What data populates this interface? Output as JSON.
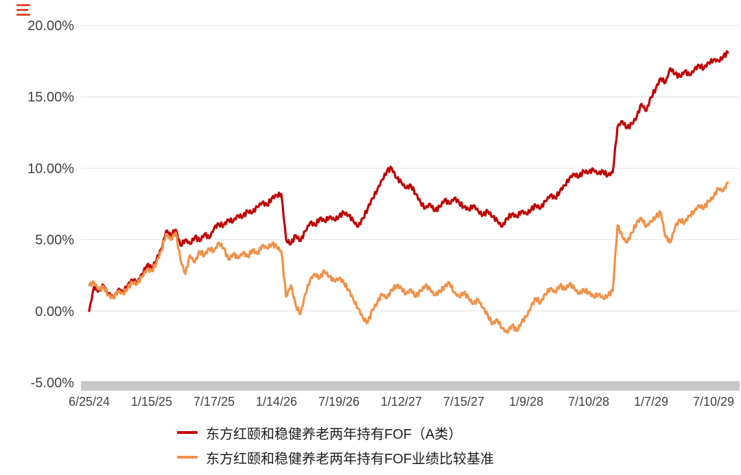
{
  "brand": {
    "mark_color": "#e4472f"
  },
  "chart_data": {
    "type": "line",
    "title": "",
    "xlabel": "",
    "ylabel": "",
    "ylim": [
      -5,
      20
    ],
    "grid": "horizontal",
    "legend_position": "bottom",
    "axis_text_color": "#3f3f3f",
    "gridline_color": "#e2e2e2",
    "baseline_bar_color": "#c8c8c8",
    "y_ticks": [
      {
        "label": "20.00%",
        "value": 20
      },
      {
        "label": "15.00%",
        "value": 15
      },
      {
        "label": "10.00%",
        "value": 10
      },
      {
        "label": "5.00%",
        "value": 5
      },
      {
        "label": "0.00%",
        "value": 0
      },
      {
        "label": "-5.00%",
        "value": -5
      }
    ],
    "x_tick_labels": [
      "6/25/24",
      "1/15/25",
      "7/17/25",
      "1/14/26",
      "7/19/26",
      "1/12/27",
      "7/15/27",
      "1/9/28",
      "7/10/28",
      "1/7/29",
      "7/10/29"
    ],
    "x_tick_indices": [
      0,
      13,
      26,
      39,
      52,
      65,
      78,
      91,
      104,
      117,
      130
    ],
    "series": [
      {
        "name": "东方红颐和稳健养老两年持有FOF（A类）",
        "color": "#c00000",
        "values": [
          0.0,
          1.7,
          1.4,
          1.8,
          1.2,
          0.9,
          1.5,
          1.3,
          1.8,
          2.2,
          2.0,
          2.6,
          3.2,
          3.0,
          3.6,
          4.3,
          5.6,
          5.3,
          5.7,
          4.6,
          5.0,
          4.7,
          5.2,
          4.9,
          5.4,
          5.1,
          5.8,
          6.1,
          6.0,
          6.4,
          6.3,
          6.7,
          6.6,
          7.0,
          6.9,
          7.3,
          7.6,
          7.4,
          7.9,
          8.1,
          8.2,
          5.0,
          4.7,
          5.3,
          4.9,
          5.6,
          6.2,
          6.0,
          6.5,
          6.3,
          6.6,
          6.4,
          6.6,
          6.9,
          6.7,
          6.3,
          5.9,
          6.5,
          7.2,
          7.9,
          8.5,
          9.2,
          9.8,
          10.0,
          9.3,
          9.0,
          8.6,
          8.8,
          8.2,
          7.6,
          7.2,
          7.5,
          7.0,
          7.3,
          7.8,
          7.5,
          7.9,
          7.6,
          7.3,
          7.1,
          7.4,
          7.0,
          6.7,
          7.0,
          6.6,
          6.3,
          5.9,
          6.5,
          6.8,
          6.6,
          7.0,
          6.8,
          7.1,
          7.4,
          7.2,
          7.7,
          8.1,
          7.9,
          8.4,
          8.8,
          9.3,
          9.6,
          9.4,
          9.8,
          9.7,
          9.9,
          9.6,
          9.8,
          9.5,
          9.7,
          12.9,
          13.3,
          12.8,
          13.1,
          13.6,
          14.5,
          14.0,
          15.0,
          15.6,
          16.3,
          16.0,
          17.0,
          16.6,
          16.4,
          16.8,
          16.5,
          16.9,
          17.2,
          17.0,
          17.4,
          17.6,
          17.5,
          17.8,
          18.1
        ]
      },
      {
        "name": "东方红颐和稳健养老两年持有FOF业绩比较基准",
        "color": "#f09148",
        "values": [
          1.8,
          2.0,
          1.5,
          1.7,
          1.1,
          0.9,
          1.4,
          1.2,
          1.6,
          2.0,
          1.9,
          2.4,
          2.9,
          2.8,
          3.4,
          4.2,
          5.4,
          5.0,
          5.5,
          3.6,
          2.6,
          3.9,
          3.4,
          4.2,
          3.9,
          4.4,
          4.2,
          4.8,
          4.4,
          3.6,
          4.0,
          3.7,
          4.1,
          3.8,
          4.3,
          4.0,
          4.6,
          4.4,
          4.7,
          4.5,
          4.2,
          1.0,
          1.8,
          0.4,
          -0.2,
          1.2,
          2.2,
          2.6,
          2.3,
          2.8,
          2.4,
          2.1,
          2.3,
          2.0,
          1.5,
          0.8,
          0.2,
          -0.5,
          -0.8,
          0.1,
          0.6,
          1.2,
          0.9,
          1.5,
          1.8,
          1.6,
          1.2,
          1.5,
          1.0,
          1.4,
          1.8,
          1.5,
          1.1,
          1.4,
          1.7,
          2.0,
          1.3,
          1.0,
          1.3,
          0.9,
          0.5,
          0.8,
          0.2,
          -0.3,
          -0.9,
          -0.6,
          -1.2,
          -1.5,
          -1.0,
          -1.4,
          -0.8,
          -0.4,
          0.3,
          0.9,
          0.6,
          1.2,
          1.6,
          1.3,
          1.8,
          1.5,
          1.9,
          1.6,
          1.2,
          1.5,
          1.3,
          1.0,
          1.2,
          0.9,
          1.1,
          1.4,
          6.0,
          5.2,
          4.8,
          5.5,
          6.2,
          6.5,
          5.9,
          6.3,
          6.6,
          6.9,
          5.2,
          4.8,
          5.9,
          6.4,
          6.2,
          6.7,
          7.0,
          7.4,
          7.2,
          7.7,
          8.0,
          8.6,
          8.4,
          9.0
        ]
      }
    ]
  }
}
